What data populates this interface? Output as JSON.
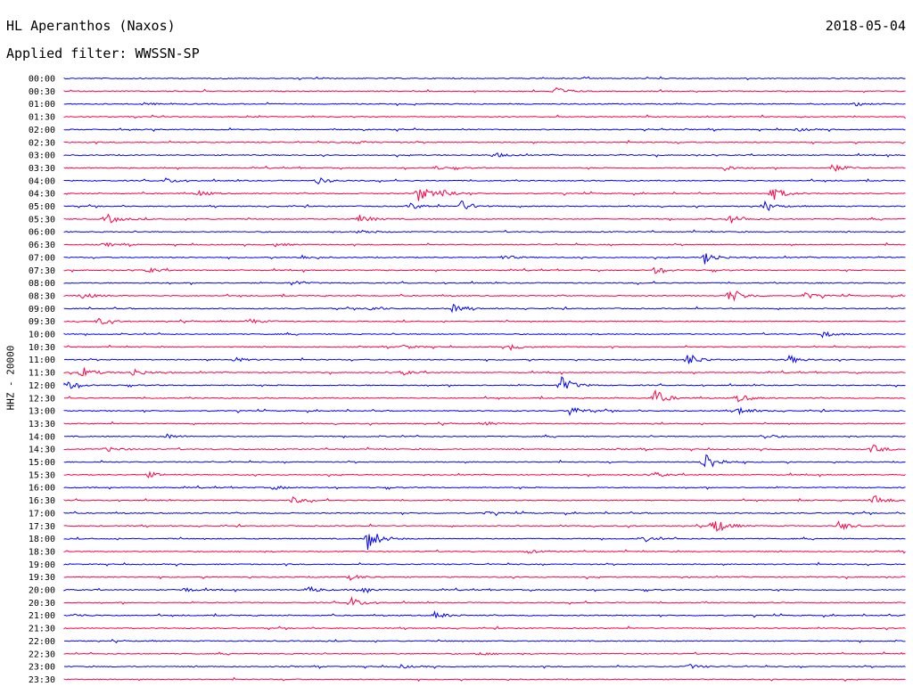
{
  "header": {
    "station": "HL Aperanthos (Naxos)",
    "date": "2018-05-04",
    "filter": "Applied filter: WWSSN-SP"
  },
  "chart_data": {
    "type": "line",
    "title": "HL Aperanthos (Naxos)",
    "ylabel": "HHZ - 20000",
    "colors": [
      "#0000ff",
      "#ff0044"
    ],
    "rows": [
      {
        "time": "00:00",
        "events": []
      },
      {
        "time": "00:30",
        "events": [
          {
            "x": 0.58,
            "amp": 6
          }
        ]
      },
      {
        "time": "01:00",
        "events": [
          {
            "x": 0.09,
            "amp": 2
          },
          {
            "x": 0.94,
            "amp": 2
          }
        ]
      },
      {
        "time": "01:30",
        "events": []
      },
      {
        "time": "02:00",
        "events": [
          {
            "x": 0.87,
            "amp": 2
          }
        ]
      },
      {
        "time": "02:30",
        "events": [
          {
            "x": 0.35,
            "amp": 2
          }
        ]
      },
      {
        "time": "03:00",
        "events": [
          {
            "x": 0.51,
            "amp": 3
          }
        ]
      },
      {
        "time": "03:30",
        "events": [
          {
            "x": 0.44,
            "amp": 2
          },
          {
            "x": 0.78,
            "amp": 4
          },
          {
            "x": 0.91,
            "amp": 5
          }
        ]
      },
      {
        "time": "04:00",
        "events": [
          {
            "x": 0.12,
            "amp": 3
          },
          {
            "x": 0.3,
            "amp": 4
          }
        ]
      },
      {
        "time": "04:30",
        "events": [
          {
            "x": 0.16,
            "amp": 3
          },
          {
            "x": 0.42,
            "amp": 9
          },
          {
            "x": 0.45,
            "amp": 5
          },
          {
            "x": 0.84,
            "amp": 9
          }
        ]
      },
      {
        "time": "05:00",
        "events": [
          {
            "x": 0.41,
            "amp": 4
          },
          {
            "x": 0.47,
            "amp": 7
          },
          {
            "x": 0.83,
            "amp": 5
          }
        ]
      },
      {
        "time": "05:30",
        "events": [
          {
            "x": 0.05,
            "amp": 6
          },
          {
            "x": 0.35,
            "amp": 5
          },
          {
            "x": 0.79,
            "amp": 5
          }
        ]
      },
      {
        "time": "06:00",
        "events": [
          {
            "x": 0.35,
            "amp": 3
          }
        ]
      },
      {
        "time": "06:30",
        "events": [
          {
            "x": 0.05,
            "amp": 2
          },
          {
            "x": 0.25,
            "amp": 2
          }
        ]
      },
      {
        "time": "07:00",
        "events": [
          {
            "x": 0.28,
            "amp": 3
          },
          {
            "x": 0.52,
            "amp": 3
          },
          {
            "x": 0.76,
            "amp": 8
          }
        ]
      },
      {
        "time": "07:30",
        "events": [
          {
            "x": 0.1,
            "amp": 3
          },
          {
            "x": 0.7,
            "amp": 4
          }
        ]
      },
      {
        "time": "08:00",
        "events": [
          {
            "x": 0.27,
            "amp": 3
          }
        ]
      },
      {
        "time": "08:30",
        "events": [
          {
            "x": 0.02,
            "amp": 4
          },
          {
            "x": 0.79,
            "amp": 10
          },
          {
            "x": 0.88,
            "amp": 4
          }
        ]
      },
      {
        "time": "09:00",
        "events": [
          {
            "x": 0.36,
            "amp": 3
          },
          {
            "x": 0.46,
            "amp": 5
          }
        ]
      },
      {
        "time": "09:30",
        "events": [
          {
            "x": 0.04,
            "amp": 4
          },
          {
            "x": 0.22,
            "amp": 3
          }
        ]
      },
      {
        "time": "10:00",
        "events": [
          {
            "x": 0.9,
            "amp": 4
          }
        ]
      },
      {
        "time": "10:30",
        "events": [
          {
            "x": 0.4,
            "amp": 3
          },
          {
            "x": 0.53,
            "amp": 3
          }
        ]
      },
      {
        "time": "11:00",
        "events": [
          {
            "x": 0.2,
            "amp": 3
          },
          {
            "x": 0.74,
            "amp": 8
          },
          {
            "x": 0.86,
            "amp": 5
          }
        ]
      },
      {
        "time": "11:30",
        "events": [
          {
            "x": 0.02,
            "amp": 7
          },
          {
            "x": 0.08,
            "amp": 5
          },
          {
            "x": 0.4,
            "amp": 3
          }
        ]
      },
      {
        "time": "12:00",
        "events": [
          {
            "x": 0.0,
            "amp": 6
          },
          {
            "x": 0.59,
            "amp": 10
          }
        ]
      },
      {
        "time": "12:30",
        "events": [
          {
            "x": 0.7,
            "amp": 10
          },
          {
            "x": 0.8,
            "amp": 5
          }
        ]
      },
      {
        "time": "13:00",
        "events": [
          {
            "x": 0.6,
            "amp": 6
          },
          {
            "x": 0.8,
            "amp": 5
          }
        ]
      },
      {
        "time": "13:30",
        "events": [
          {
            "x": 0.5,
            "amp": 2
          }
        ]
      },
      {
        "time": "14:00",
        "events": [
          {
            "x": 0.12,
            "amp": 3
          },
          {
            "x": 0.83,
            "amp": 3
          }
        ]
      },
      {
        "time": "14:30",
        "events": [
          {
            "x": 0.05,
            "amp": 3
          },
          {
            "x": 0.96,
            "amp": 5
          }
        ]
      },
      {
        "time": "15:00",
        "events": [
          {
            "x": 0.76,
            "amp": 13
          }
        ]
      },
      {
        "time": "15:30",
        "events": [
          {
            "x": 0.1,
            "amp": 3
          },
          {
            "x": 0.7,
            "amp": 3
          }
        ]
      },
      {
        "time": "16:00",
        "events": [
          {
            "x": 0.25,
            "amp": 2
          }
        ]
      },
      {
        "time": "16:30",
        "events": [
          {
            "x": 0.27,
            "amp": 4
          },
          {
            "x": 0.96,
            "amp": 7
          }
        ]
      },
      {
        "time": "17:00",
        "events": [
          {
            "x": 0.5,
            "amp": 2
          }
        ]
      },
      {
        "time": "17:30",
        "events": [
          {
            "x": 0.77,
            "amp": 11
          },
          {
            "x": 0.92,
            "amp": 5
          }
        ]
      },
      {
        "time": "18:00",
        "events": [
          {
            "x": 0.36,
            "amp": 14
          },
          {
            "x": 0.69,
            "amp": 3
          }
        ]
      },
      {
        "time": "18:30",
        "events": [
          {
            "x": 0.55,
            "amp": 2
          }
        ]
      },
      {
        "time": "19:00",
        "events": []
      },
      {
        "time": "19:30",
        "events": [
          {
            "x": 0.34,
            "amp": 3
          }
        ]
      },
      {
        "time": "20:00",
        "events": [
          {
            "x": 0.14,
            "amp": 3
          },
          {
            "x": 0.29,
            "amp": 4
          },
          {
            "x": 0.35,
            "amp": 4
          }
        ]
      },
      {
        "time": "20:30",
        "events": [
          {
            "x": 0.34,
            "amp": 6
          }
        ]
      },
      {
        "time": "21:00",
        "events": [
          {
            "x": 0.01,
            "amp": 2
          },
          {
            "x": 0.44,
            "amp": 4
          }
        ]
      },
      {
        "time": "21:30",
        "events": []
      },
      {
        "time": "22:00",
        "events": []
      },
      {
        "time": "22:30",
        "events": [
          {
            "x": 0.49,
            "amp": 2
          }
        ]
      },
      {
        "time": "23:00",
        "events": [
          {
            "x": 0.4,
            "amp": 2
          },
          {
            "x": 0.74,
            "amp": 3
          }
        ]
      },
      {
        "time": "23:30",
        "events": []
      }
    ]
  }
}
